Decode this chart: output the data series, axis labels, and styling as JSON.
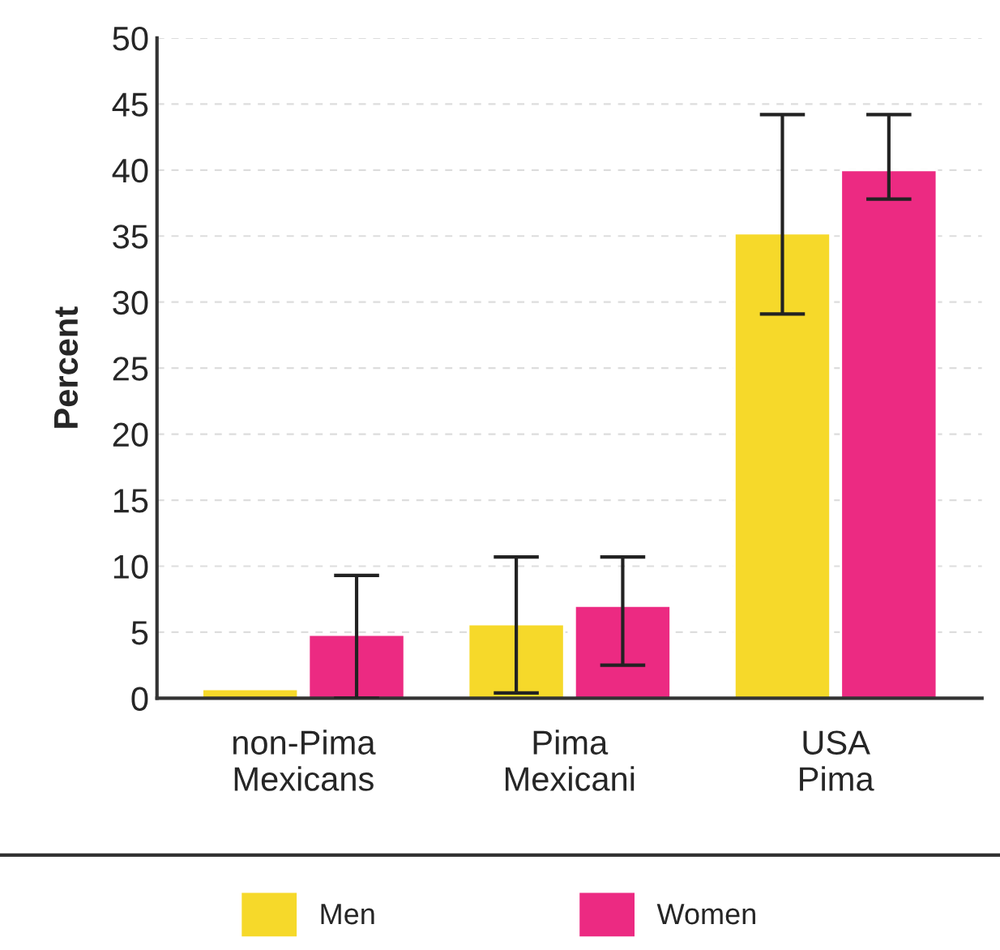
{
  "chart_data": {
    "type": "bar",
    "ylabel": "Percent",
    "categories": [
      "non-Pima\nMexicans",
      "Pima\nMexicani",
      "USA\nPima"
    ],
    "series": [
      {
        "name": "Men",
        "color": "#f6d92a",
        "values": [
          0.7,
          5.6,
          35.2
        ],
        "errors": [
          null,
          [
            0.4,
            10.7
          ],
          [
            29.1,
            44.2
          ]
        ]
      },
      {
        "name": "Women",
        "color": "#ec2a82",
        "values": [
          4.8,
          7.0,
          40.0
        ],
        "errors": [
          [
            0.0,
            9.3
          ],
          [
            2.5,
            10.7
          ],
          [
            37.8,
            44.2
          ]
        ]
      }
    ],
    "ylim": [
      0,
      50
    ],
    "yticks": [
      0,
      5,
      10,
      15,
      20,
      25,
      30,
      35,
      40,
      45,
      50
    ],
    "grid": "y",
    "legend": "bottom"
  }
}
